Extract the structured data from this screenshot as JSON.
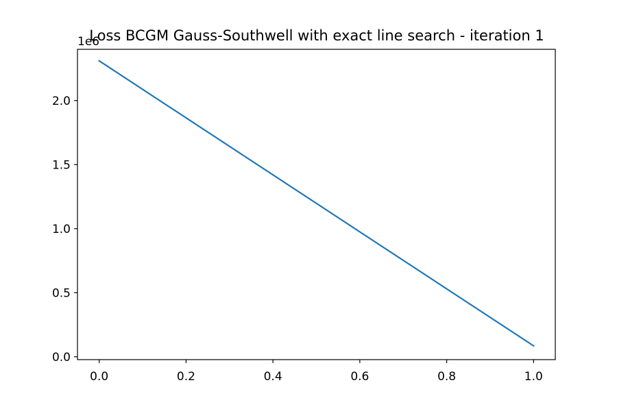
{
  "chart_data": {
    "type": "line",
    "title": "Loss BCGM Gauss-Southwell with exact line search - iteration 1",
    "xlabel": "",
    "ylabel": "",
    "y_offset_text": "1e6",
    "xlim": [
      -0.05,
      1.05
    ],
    "ylim": [
      -0.0225,
      2.4
    ],
    "x_ticks": [
      0.0,
      0.2,
      0.4,
      0.6,
      0.8,
      1.0
    ],
    "x_tick_labels": [
      "0.0",
      "0.2",
      "0.4",
      "0.6",
      "0.8",
      "1.0"
    ],
    "y_ticks": [
      0.0,
      0.5,
      1.0,
      1.5,
      2.0
    ],
    "y_tick_labels": [
      "0.0",
      "0.5",
      "1.0",
      "1.5",
      "2.0"
    ],
    "grid": false,
    "series": [
      {
        "color": "#1f77b4",
        "x": [
          0.0,
          1.0
        ],
        "y": [
          2.31,
          0.085
        ]
      }
    ]
  }
}
